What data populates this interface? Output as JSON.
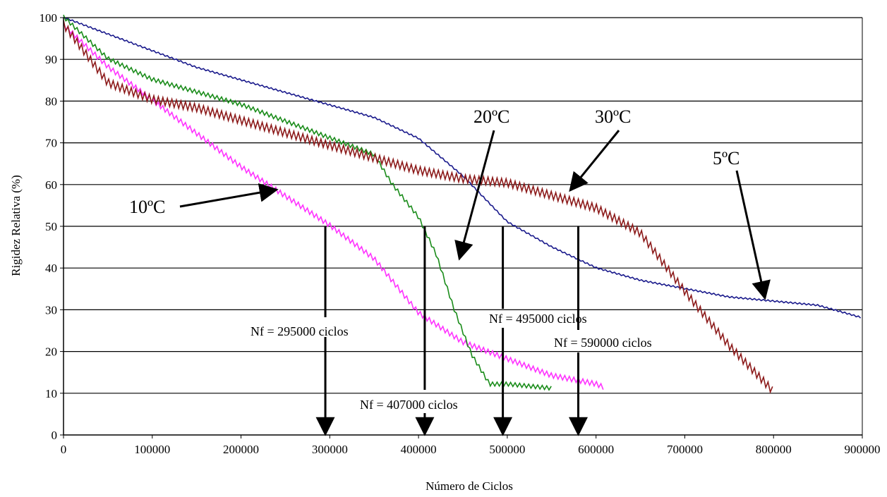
{
  "chart_data": {
    "type": "line",
    "title": "",
    "xlabel": "Número de Ciclos",
    "ylabel": "Rigidez Relativa (%)",
    "xlim": [
      0,
      900000
    ],
    "ylim": [
      0,
      100
    ],
    "x_ticks": [
      "0",
      "100000",
      "200000",
      "300000",
      "400000",
      "500000",
      "600000",
      "700000",
      "800000",
      "900000"
    ],
    "y_ticks": [
      "0",
      "10",
      "20",
      "30",
      "40",
      "50",
      "60",
      "70",
      "80",
      "90",
      "100"
    ],
    "grid": "horizontal",
    "series": [
      {
        "name": "5ºC",
        "color": "#1a1a8c",
        "x": [
          0,
          50000,
          100000,
          150000,
          200000,
          250000,
          300000,
          350000,
          400000,
          450000,
          500000,
          550000,
          600000,
          650000,
          700000,
          750000,
          800000,
          850000,
          900000
        ],
        "y": [
          100,
          96,
          92,
          88,
          85,
          82,
          79,
          76,
          71,
          62,
          51,
          45,
          40,
          37,
          35,
          33,
          32,
          31,
          28
        ]
      },
      {
        "name": "10ºC",
        "color": "#ff33ff",
        "x": [
          0,
          50000,
          100000,
          150000,
          200000,
          250000,
          300000,
          350000,
          400000,
          450000,
          500000,
          550000,
          600000,
          610000
        ],
        "y": [
          98,
          88,
          80,
          72,
          64,
          57,
          50,
          42,
          29,
          22,
          18,
          14,
          12,
          11
        ]
      },
      {
        "name": "20ºC",
        "color": "#1a8c1a",
        "x": [
          0,
          50000,
          100000,
          150000,
          200000,
          250000,
          300000,
          350000,
          370000,
          400000,
          420000,
          440000,
          460000,
          480000,
          500000,
          550000
        ],
        "y": [
          100,
          90,
          85,
          82,
          79,
          75,
          71,
          67,
          60,
          52,
          43,
          30,
          19,
          12,
          12,
          11
        ]
      },
      {
        "name": "30ºC",
        "color": "#8c1a1a",
        "x": [
          0,
          50000,
          100000,
          150000,
          200000,
          250000,
          300000,
          350000,
          400000,
          450000,
          500000,
          550000,
          600000,
          650000,
          700000,
          750000,
          800000
        ],
        "y": [
          98,
          84,
          80,
          78,
          75,
          72,
          69,
          66,
          63,
          61,
          60,
          57,
          54,
          48,
          34,
          21,
          10
        ]
      }
    ],
    "annotations": [
      {
        "text": "5ºC",
        "series": "5ºC"
      },
      {
        "text": "10ºC",
        "series": "10ºC"
      },
      {
        "text": "20ºC",
        "series": "20ºC"
      },
      {
        "text": "30ºC",
        "series": "30ºC"
      },
      {
        "text": "Nf = 295000 ciclos",
        "x": 295000,
        "y": 50
      },
      {
        "text": "Nf = 407000 ciclos",
        "x": 407000,
        "y": 50
      },
      {
        "text": "Nf = 495000 ciclos",
        "x": 495000,
        "y": 50
      },
      {
        "text": "Nf = 590000 ciclos",
        "x": 590000,
        "y": 50
      }
    ]
  }
}
